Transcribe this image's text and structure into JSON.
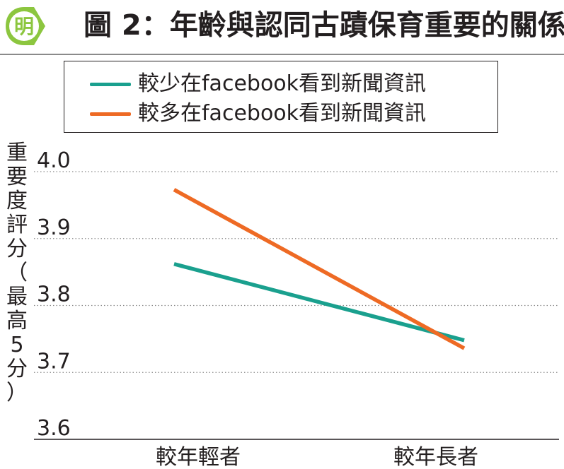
{
  "header": {
    "badge_char": "明",
    "title": "圖 2：年齡與認同古蹟保育重要的關係"
  },
  "colors": {
    "badge_green": "#8cc63f",
    "series_low": "#1aa08e",
    "series_high": "#ee6a24",
    "grid": "#8a8a8a"
  },
  "chart_data": {
    "type": "line",
    "title": "圖 2：年齡與認同古蹟保育重要的關係",
    "xlabel": "",
    "ylabel": [
      "重",
      "要",
      "度",
      "評",
      "分",
      "（",
      "最",
      "高",
      "5",
      "分",
      "）"
    ],
    "categories": [
      "較年輕者",
      "較年長者"
    ],
    "ylim": [
      3.6,
      4.0
    ],
    "yticks": [
      "4.0",
      "3.9",
      "3.8",
      "3.7",
      "3.6"
    ],
    "grid": true,
    "legend_position": "top",
    "series": [
      {
        "name": "較少在facebook看到新聞資訊",
        "values": [
          3.862,
          3.748
        ],
        "color": "#1aa08e"
      },
      {
        "name": "較多在facebook看到新聞資訊",
        "values": [
          3.973,
          3.736
        ],
        "color": "#ee6a24"
      }
    ]
  }
}
